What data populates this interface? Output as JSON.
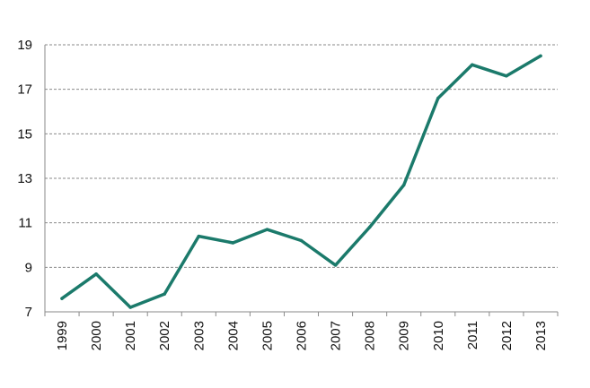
{
  "chart_data": {
    "type": "line",
    "title": "",
    "xlabel": "",
    "ylabel": "",
    "x": [
      "1999",
      "2000",
      "2001",
      "2002",
      "2003",
      "2004",
      "2005",
      "2006",
      "2007",
      "2008",
      "2009",
      "2010",
      "2011",
      "2012",
      "2013"
    ],
    "series": [
      {
        "values": [
          7.6,
          8.7,
          7.2,
          7.8,
          10.4,
          10.1,
          10.7,
          10.2,
          9.1,
          10.8,
          12.7,
          16.6,
          18.1,
          17.6,
          18.5
        ],
        "color": "#1b7a6b"
      }
    ],
    "ylim": [
      7,
      19
    ],
    "yticks": [
      7,
      9,
      11,
      13,
      15,
      17,
      19
    ],
    "grid": true,
    "legend": "none"
  }
}
